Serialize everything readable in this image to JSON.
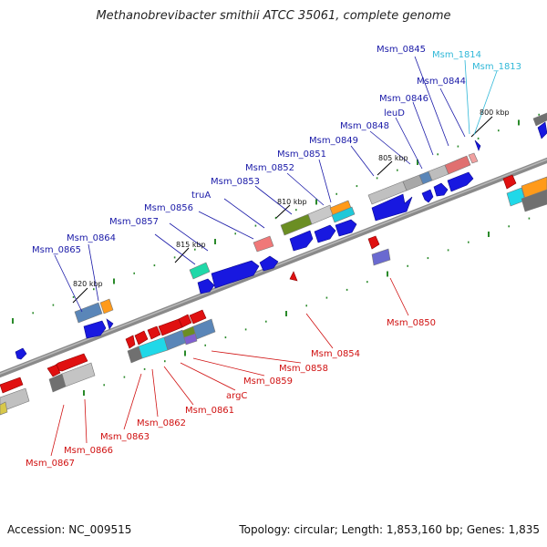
{
  "title": "Methanobrevibacter smithii ATCC 35061, complete genome",
  "footer": {
    "accession": "Accession: NC_009515",
    "topology": "Topology: circular; Length: 1,853,160 bp; Genes: 1,835"
  },
  "colors": {
    "forward_label": "#1a1aa8",
    "reverse_label": "#d01010",
    "rna_label": "#30b8d8",
    "backbone": "#888888",
    "tick": "#2a8a2a"
  },
  "ticks": [
    "800 kbp",
    "805 kbp",
    "810 kbp",
    "815 kbp",
    "820 kbp"
  ],
  "labels_top": [
    "Msm_0845",
    "Msm_1814",
    "Msm_1813",
    "Msm_0844",
    "Msm_0846",
    "leuD",
    "Msm_0848",
    "Msm_0849",
    "Msm_0851",
    "Msm_0852",
    "Msm_0853",
    "truA",
    "Msm_0856",
    "Msm_0857",
    "Msm_0864",
    "Msm_0865"
  ],
  "labels_bottom": [
    "Msm_0850",
    "Msm_0854",
    "Msm_0858",
    "Msm_0859",
    "argC",
    "Msm_0861",
    "Msm_0862",
    "Msm_0863",
    "Msm_0866",
    "Msm_0867"
  ]
}
